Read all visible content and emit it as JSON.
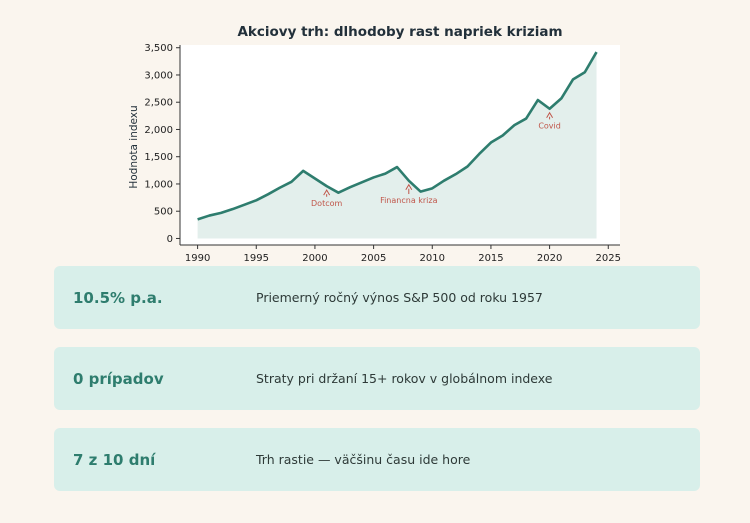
{
  "chart_data": {
    "type": "area",
    "title": "Akciovy trh: dlhodoby rast napriek kriziam",
    "ylabel": "Hodnota indexu",
    "xlabel": "",
    "xlim": [
      1988.5,
      2026
    ],
    "ylim": [
      -120,
      3550
    ],
    "xticks": [
      1990,
      1995,
      2000,
      2005,
      2010,
      2015,
      2020,
      2025
    ],
    "yticks": [
      0,
      500,
      1000,
      1500,
      2000,
      2500,
      3000,
      3500
    ],
    "ytick_labels": [
      "0",
      "500",
      "1,000",
      "1,500",
      "2,000",
      "2,500",
      "3,000",
      "3,500"
    ],
    "grid": false,
    "line_color": "#2e7d6e",
    "fill_color": "#e3efec",
    "x": [
      1990,
      1991,
      1992,
      1993,
      1994,
      1995,
      1996,
      1997,
      1998,
      1999,
      2000,
      2001,
      2002,
      2003,
      2004,
      2005,
      2006,
      2007,
      2008,
      2009,
      2010,
      2011,
      2012,
      2013,
      2014,
      2015,
      2016,
      2017,
      2018,
      2019,
      2020,
      2021,
      2022,
      2023,
      2024
    ],
    "values": [
      350,
      420,
      470,
      540,
      620,
      700,
      810,
      930,
      1040,
      1240,
      1100,
      960,
      840,
      940,
      1030,
      1120,
      1190,
      1310,
      1060,
      860,
      920,
      1060,
      1180,
      1320,
      1550,
      1760,
      1890,
      2080,
      2200,
      2540,
      2380,
      2570,
      2920,
      3050,
      3420
    ],
    "annotations": [
      {
        "label": "Dotcom",
        "x": 2001,
        "y": 960,
        "text_y": 600
      },
      {
        "label": "Financna kriza",
        "x": 2008,
        "y": 1060,
        "text_y": 650
      },
      {
        "label": "Covid",
        "x": 2020,
        "y": 2380,
        "text_y": 2020
      }
    ],
    "annotation_color": "#c0564a"
  },
  "stats": [
    {
      "value": "10.5% p.a.",
      "description": "Priemerný ročný výnos S&P 500 od roku 1957"
    },
    {
      "value": "0 prípadov",
      "description": "Straty pri držaní 15+ rokov v globálnom indexe"
    },
    {
      "value": "7 z 10 dní",
      "description": "Trh rastie — väčšinu času ide hore"
    }
  ]
}
